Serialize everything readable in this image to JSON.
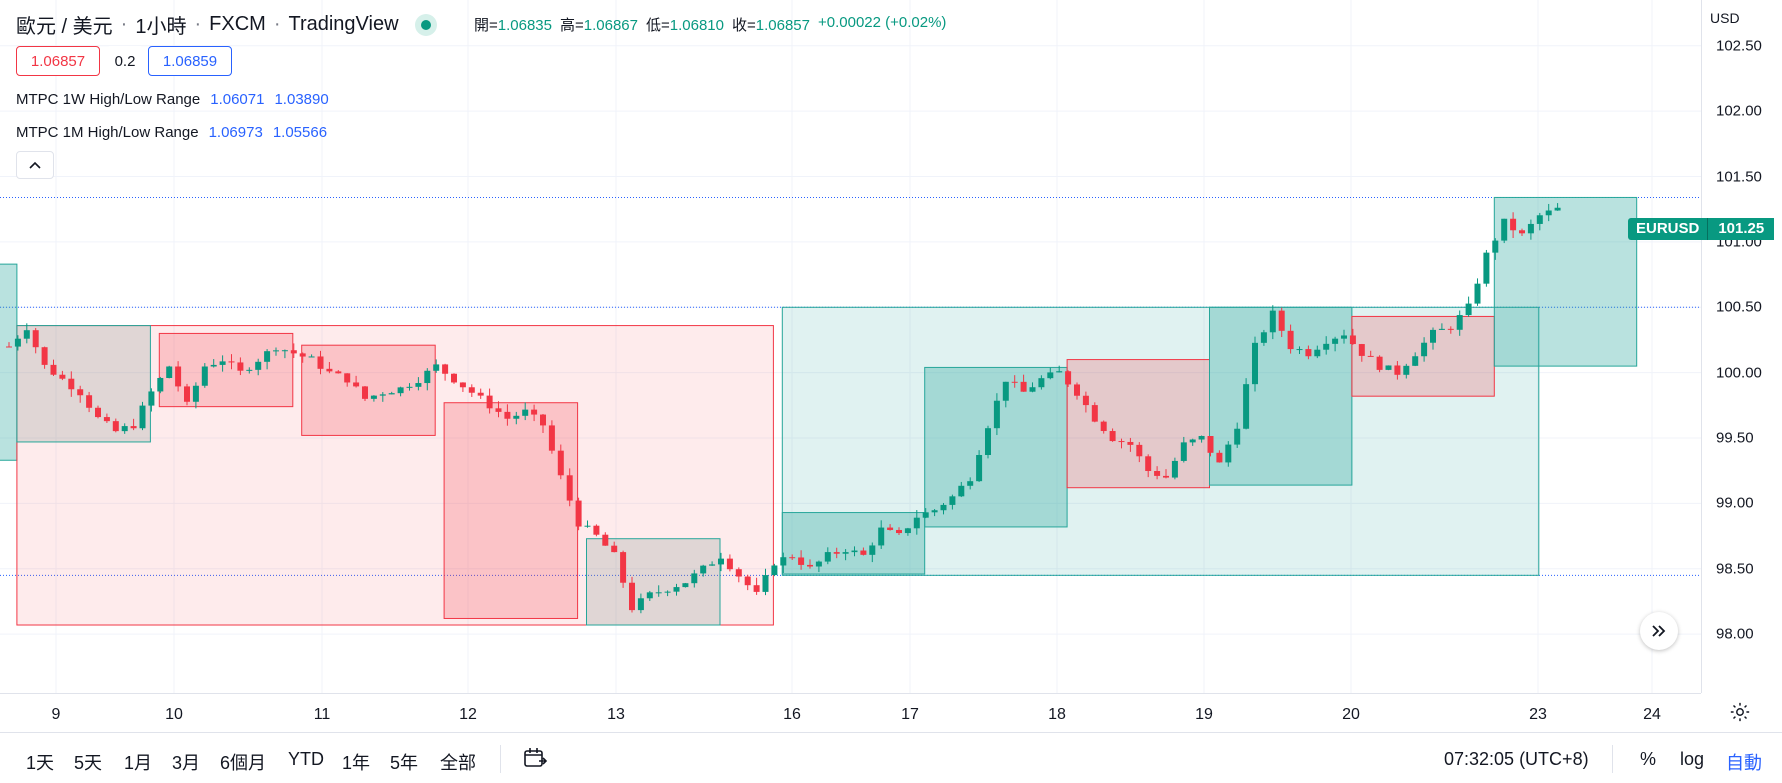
{
  "header": {
    "pair": "歐元 / 美元",
    "sep1": "·",
    "interval": "1小時",
    "sep2": "·",
    "exchange": "FXCM",
    "sep3": "·",
    "source": "TradingView"
  },
  "ohlc": {
    "open_label": "開=",
    "open": "1.06835",
    "high_label": "高=",
    "high": "1.06867",
    "low_label": "低=",
    "low": "1.06810",
    "close_label": "收=",
    "close": "1.06857",
    "change": "+0.00022 (+0.02%)"
  },
  "quote": {
    "bid": "1.06857",
    "spread": "0.2",
    "ask": "1.06859"
  },
  "indicators": [
    {
      "name": "MTPC 1W High/Low Range",
      "v1": "1.06071",
      "v2": "1.03890"
    },
    {
      "name": "MTPC 1M High/Low Range",
      "v1": "1.06973",
      "v2": "1.05566"
    }
  ],
  "collapse_icon": "chevron-up-icon",
  "price_axis": {
    "currency": "USD",
    "ticks": [
      "102.50",
      "102.00",
      "101.50",
      "101.00",
      "100.50",
      "100.00",
      "99.50",
      "99.00",
      "98.50",
      "98.00"
    ]
  },
  "last_price": {
    "symbol": "EURUSD",
    "value": "101.25"
  },
  "time_axis": {
    "ticks": [
      "9",
      "10",
      "11",
      "12",
      "13",
      "16",
      "17",
      "18",
      "19",
      "20",
      "23",
      "24"
    ]
  },
  "bottom_bar": {
    "ranges": [
      "1天",
      "5天",
      "1月",
      "3月",
      "6個月",
      "YTD",
      "1年",
      "5年",
      "全部"
    ],
    "compare_icon": "calendar-range-icon",
    "clock": "07:32:05 (UTC+8)",
    "percent": "%",
    "log": "log",
    "auto": "自動"
  },
  "colors": {
    "up": "#089981",
    "down": "#f23645",
    "bear_box_fill": "#ffcdd0",
    "bull_box_fill": "#b2dfdb",
    "accent": "#2962ff"
  },
  "chart_data": {
    "type": "candlestick",
    "symbol": "EURUSD",
    "y_range": [
      97.55,
      102.85
    ],
    "ylabels": [
      "102.50",
      "102.00",
      "101.50",
      "101.00",
      "100.50",
      "100.00",
      "99.50",
      "99.00",
      "98.50",
      "98.00"
    ],
    "x_labels": [
      "9",
      "10",
      "11",
      "12",
      "13",
      "16",
      "17",
      "18",
      "19",
      "20",
      "23",
      "24"
    ],
    "horizontal_levels": [
      101.34,
      100.5,
      98.45
    ],
    "close_path": [
      [
        0,
        100.2
      ],
      [
        2,
        100.35
      ],
      [
        4,
        100.05
      ],
      [
        6,
        99.95
      ],
      [
        8,
        99.85
      ],
      [
        10,
        99.65
      ],
      [
        12,
        99.55
      ],
      [
        14,
        99.6
      ],
      [
        16,
        99.85
      ],
      [
        18,
        100.05
      ],
      [
        20,
        99.75
      ],
      [
        22,
        100.05
      ],
      [
        24,
        100.1
      ],
      [
        26,
        100.0
      ],
      [
        28,
        100.1
      ],
      [
        30,
        100.2
      ],
      [
        32,
        100.15
      ],
      [
        34,
        100.1
      ],
      [
        36,
        100.0
      ],
      [
        38,
        99.95
      ],
      [
        40,
        99.8
      ],
      [
        42,
        99.85
      ],
      [
        44,
        99.88
      ],
      [
        46,
        99.95
      ],
      [
        48,
        100.05
      ],
      [
        50,
        99.95
      ],
      [
        52,
        99.85
      ],
      [
        54,
        99.75
      ],
      [
        56,
        99.65
      ],
      [
        58,
        99.7
      ],
      [
        60,
        99.6
      ],
      [
        62,
        99.2
      ],
      [
        64,
        98.85
      ],
      [
        66,
        98.75
      ],
      [
        68,
        98.6
      ],
      [
        70,
        98.2
      ],
      [
        72,
        98.3
      ],
      [
        74,
        98.35
      ],
      [
        76,
        98.4
      ],
      [
        78,
        98.5
      ],
      [
        80,
        98.6
      ],
      [
        82,
        98.45
      ],
      [
        84,
        98.3
      ],
      [
        86,
        98.55
      ],
      [
        88,
        98.6
      ],
      [
        90,
        98.5
      ],
      [
        92,
        98.6
      ],
      [
        94,
        98.65
      ],
      [
        96,
        98.6
      ],
      [
        98,
        98.8
      ],
      [
        100,
        98.75
      ],
      [
        102,
        98.9
      ],
      [
        104,
        98.95
      ],
      [
        106,
        99.05
      ],
      [
        108,
        99.2
      ],
      [
        110,
        99.6
      ],
      [
        112,
        99.95
      ],
      [
        114,
        99.85
      ],
      [
        116,
        99.95
      ],
      [
        118,
        100.0
      ],
      [
        120,
        99.85
      ],
      [
        122,
        99.65
      ],
      [
        124,
        99.5
      ],
      [
        126,
        99.45
      ],
      [
        128,
        99.25
      ],
      [
        130,
        99.2
      ],
      [
        132,
        99.45
      ],
      [
        134,
        99.5
      ],
      [
        136,
        99.3
      ],
      [
        138,
        99.6
      ],
      [
        140,
        100.2
      ],
      [
        142,
        100.45
      ],
      [
        144,
        100.2
      ],
      [
        146,
        100.15
      ],
      [
        148,
        100.25
      ],
      [
        150,
        100.3
      ],
      [
        152,
        100.15
      ],
      [
        154,
        100.05
      ],
      [
        156,
        100.0
      ],
      [
        158,
        100.15
      ],
      [
        160,
        100.3
      ],
      [
        162,
        100.35
      ],
      [
        164,
        100.5
      ],
      [
        166,
        100.9
      ],
      [
        168,
        101.15
      ],
      [
        170,
        101.05
      ],
      [
        172,
        101.2
      ],
      [
        174,
        101.25
      ]
    ],
    "boxes": [
      {
        "kind": "bull",
        "t0": -1,
        "t1": 1,
        "high": 100.83,
        "low": 99.33,
        "label": ""
      },
      {
        "kind": "bear",
        "t0": 1,
        "t1": 86,
        "high": 100.36,
        "low": 98.07,
        "label": ""
      },
      {
        "kind": "neutral",
        "t0": 1,
        "t1": 16,
        "high": 100.36,
        "low": 99.47,
        "label": ""
      },
      {
        "kind": "bear",
        "t0": 17,
        "t1": 32,
        "high": 100.3,
        "low": 99.74,
        "label": ""
      },
      {
        "kind": "bear",
        "t0": 33,
        "t1": 48,
        "high": 100.21,
        "low": 99.52,
        "label": ""
      },
      {
        "kind": "bear",
        "t0": 49,
        "t1": 64,
        "high": 99.77,
        "low": 98.12,
        "label": ""
      },
      {
        "kind": "neutral",
        "t0": 65,
        "t1": 80,
        "high": 98.73,
        "low": 98.07,
        "label": ""
      },
      {
        "kind": "bull",
        "t0": 87,
        "t1": 172,
        "high": 100.5,
        "low": 98.45,
        "label": ""
      },
      {
        "kind": "bull",
        "t0": 87,
        "t1": 103,
        "high": 98.93,
        "low": 98.46,
        "label": ""
      },
      {
        "kind": "bull",
        "t0": 103,
        "t1": 119,
        "high": 100.04,
        "low": 98.82,
        "label": ""
      },
      {
        "kind": "bear",
        "t0": 119,
        "t1": 135,
        "high": 100.1,
        "low": 99.12,
        "label": ""
      },
      {
        "kind": "bull",
        "t0": 135,
        "t1": 151,
        "high": 100.5,
        "low": 99.14,
        "label": ""
      },
      {
        "kind": "bear",
        "t0": 151,
        "t1": 167,
        "high": 100.43,
        "low": 99.82,
        "label": ""
      },
      {
        "kind": "bull",
        "t0": 167,
        "t1": 183,
        "high": 101.34,
        "low": 100.05,
        "label": ""
      }
    ]
  }
}
